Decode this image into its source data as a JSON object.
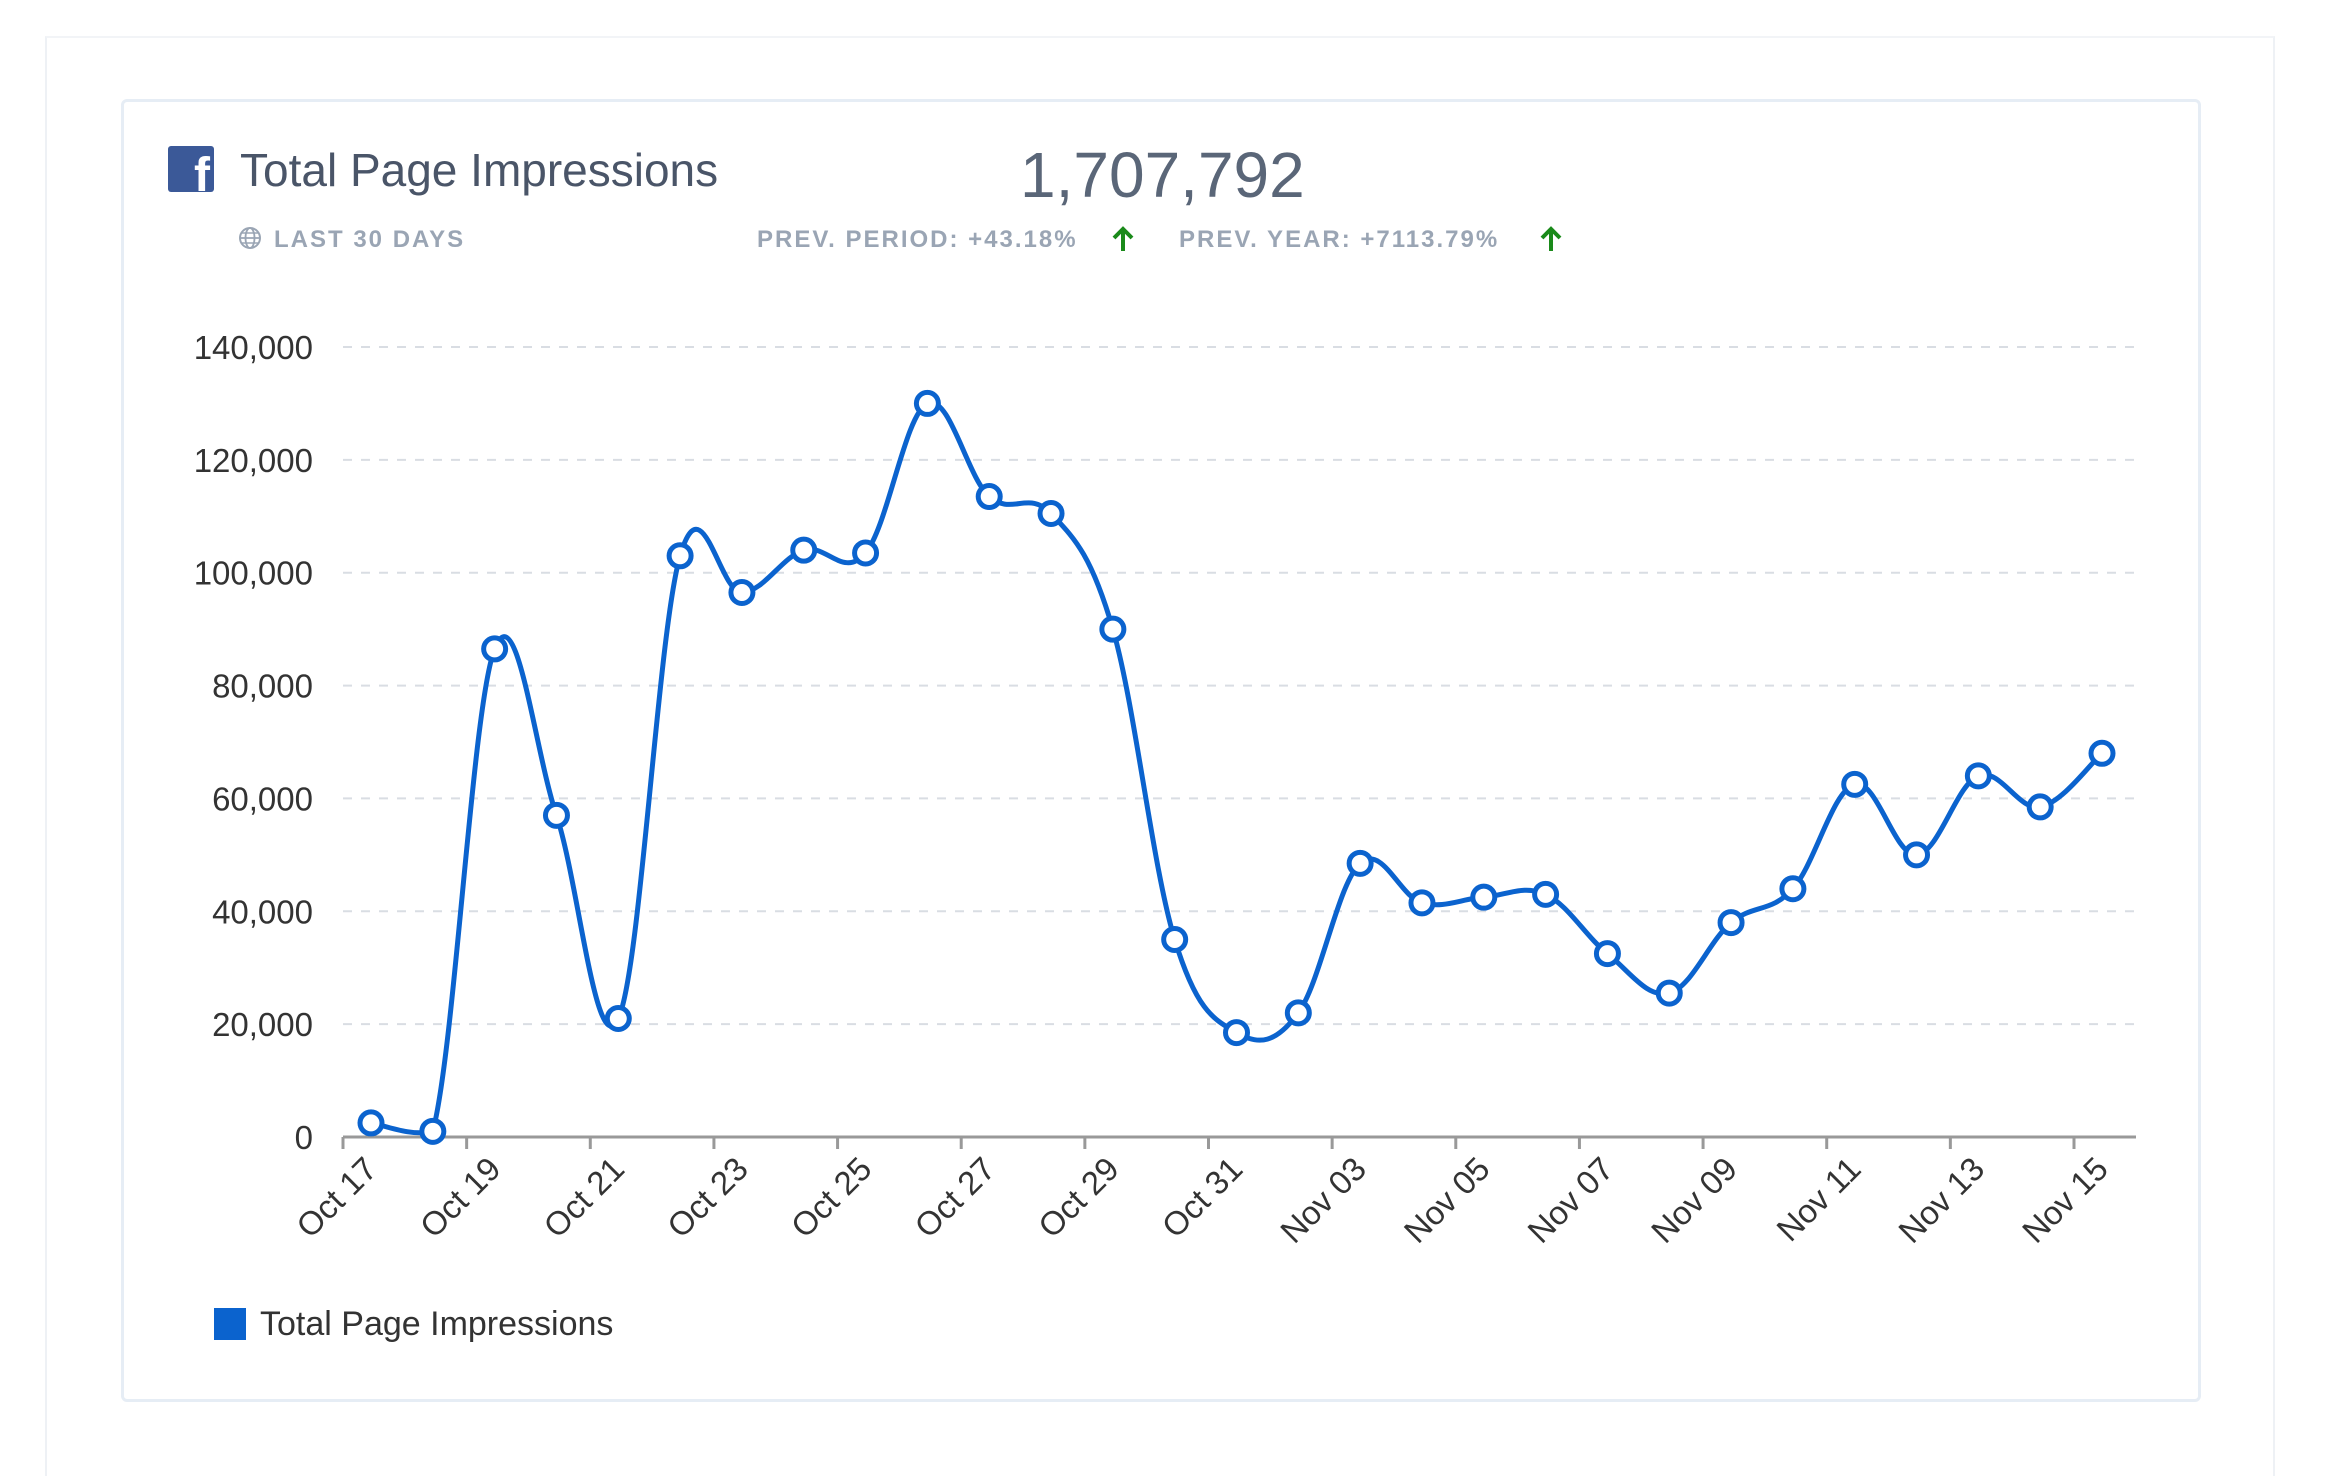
{
  "card": {
    "title": "Total Page Impressions",
    "total": "1,707,792",
    "period": "LAST 30 DAYS",
    "prev_period": "PREV. PERIOD: +43.18%",
    "prev_year": "PREV. YEAR: +7113.79%",
    "trend_color": "#1a8a1a"
  },
  "colors": {
    "line": "#0b63ce",
    "facebook": "#3b5998"
  },
  "icons": {
    "brand": "facebook-icon",
    "period": "globe-icon",
    "trend": "arrow-up-icon"
  },
  "chart_data": {
    "type": "line",
    "x": [
      "Oct 17",
      "Oct 18",
      "Oct 19",
      "Oct 20",
      "Oct 21",
      "Oct 22",
      "Oct 23",
      "Oct 24",
      "Oct 25",
      "Oct 26",
      "Oct 27",
      "Oct 28",
      "Oct 29",
      "Oct 30",
      "Oct 31",
      "Nov 01",
      "Nov 03",
      "Nov 04",
      "Nov 05",
      "Nov 06",
      "Nov 07",
      "Nov 08",
      "Nov 09",
      "Nov 10",
      "Nov 11",
      "Nov 12",
      "Nov 13",
      "Nov 14",
      "Nov 15"
    ],
    "series": [
      {
        "name": "Total Page Impressions",
        "values": [
          2500,
          1000,
          86500,
          57000,
          21000,
          103000,
          96500,
          104000,
          103500,
          130000,
          113500,
          110500,
          90000,
          35000,
          18500,
          22000,
          48500,
          41500,
          42500,
          43000,
          32500,
          25500,
          38000,
          44000,
          62500,
          50000,
          64000,
          58500,
          68000
        ]
      }
    ],
    "xticks": [
      "Oct 17",
      "Oct 19",
      "Oct 21",
      "Oct 23",
      "Oct 25",
      "Oct 27",
      "Oct 29",
      "Oct 31",
      "Nov 03",
      "Nov 05",
      "Nov 07",
      "Nov 09",
      "Nov 11",
      "Nov 13",
      "Nov 15"
    ],
    "yticks": [
      "0",
      "20,000",
      "40,000",
      "60,000",
      "80,000",
      "100,000",
      "120,000",
      "140,000"
    ],
    "ylim": [
      0,
      140000
    ],
    "grid": "horizontal dashed",
    "legend": "bottom-left",
    "title": "",
    "xlabel": "",
    "ylabel": ""
  }
}
